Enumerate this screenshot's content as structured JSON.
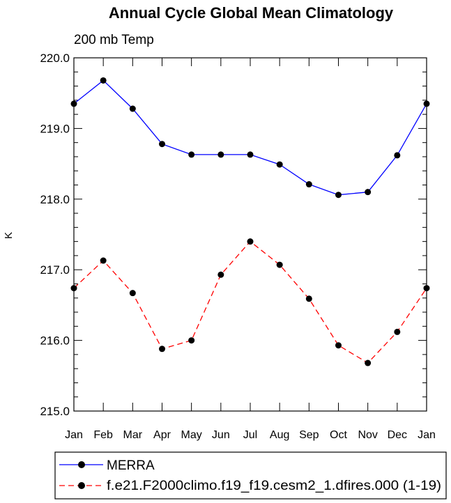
{
  "chart_data": {
    "type": "line",
    "title": "Annual Cycle Global Mean Climatology",
    "subtitle": "200 mb Temp",
    "xlabel": "",
    "ylabel": "K",
    "categories": [
      "Jan",
      "Feb",
      "Mar",
      "Apr",
      "May",
      "Jun",
      "Jul",
      "Aug",
      "Sep",
      "Oct",
      "Nov",
      "Dec",
      "Jan"
    ],
    "ylim": [
      215.0,
      220.0
    ],
    "yticks": [
      "215.0",
      "216.0",
      "217.0",
      "218.0",
      "219.0",
      "220.0"
    ],
    "grid": false,
    "legend_position": "bottom",
    "series": [
      {
        "name": "MERRA",
        "color": "#0000ff",
        "dash": "solid",
        "marker": "filled-circle",
        "values": [
          219.35,
          219.68,
          219.28,
          218.78,
          218.63,
          218.63,
          218.63,
          218.49,
          218.21,
          218.06,
          218.1,
          218.62,
          219.35
        ]
      },
      {
        "name": "f.e21.F2000climo.f19_f19.cesm2_1.dfires.000 (1-19)",
        "color": "#ff0000",
        "dash": "dashed",
        "marker": "filled-circle",
        "values": [
          216.74,
          217.13,
          216.67,
          215.88,
          216.0,
          216.93,
          217.4,
          217.07,
          216.59,
          215.93,
          215.68,
          216.12,
          216.74
        ]
      }
    ]
  }
}
